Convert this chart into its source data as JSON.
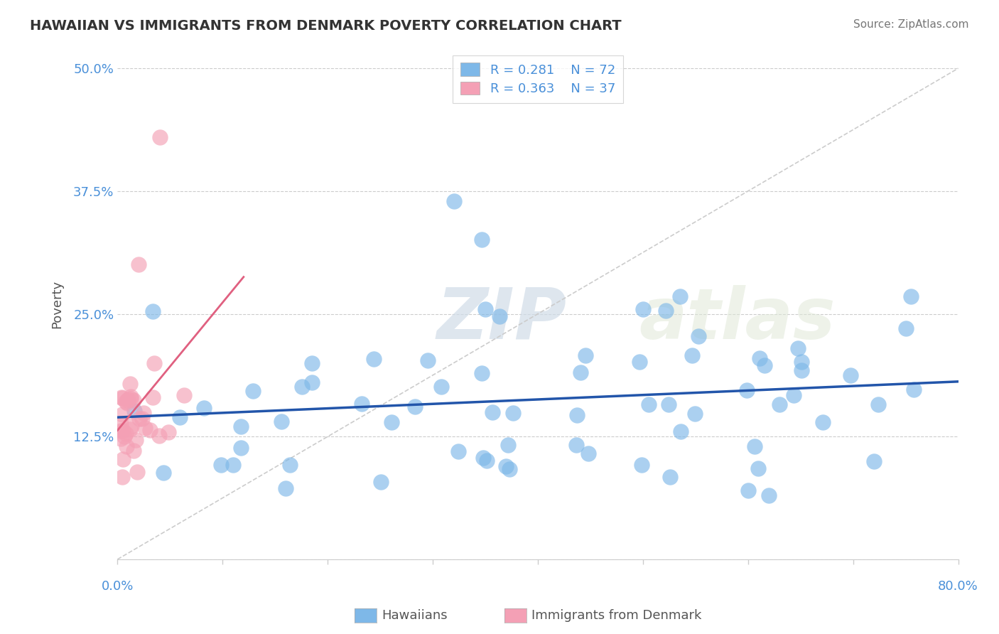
{
  "title": "HAWAIIAN VS IMMIGRANTS FROM DENMARK POVERTY CORRELATION CHART",
  "source": "Source: ZipAtlas.com",
  "ylabel": "Poverty",
  "y_ticks": [
    0.0,
    0.125,
    0.25,
    0.375,
    0.5
  ],
  "y_tick_labels": [
    "",
    "12.5%",
    "25.0%",
    "37.5%",
    "50.0%"
  ],
  "x_lim": [
    0.0,
    0.8
  ],
  "y_lim": [
    0.0,
    0.52
  ],
  "hawaiians_R": 0.281,
  "hawaiians_N": 72,
  "denmark_R": 0.363,
  "denmark_N": 37,
  "legend_R_color": "#4a90d9",
  "hawaiian_color": "#7eb8e8",
  "denmark_color": "#f4a0b5",
  "trend_blue": "#2255aa",
  "trend_pink": "#e06080",
  "background_color": "#ffffff",
  "watermark_zip": "ZIP",
  "watermark_atlas": "atlas"
}
